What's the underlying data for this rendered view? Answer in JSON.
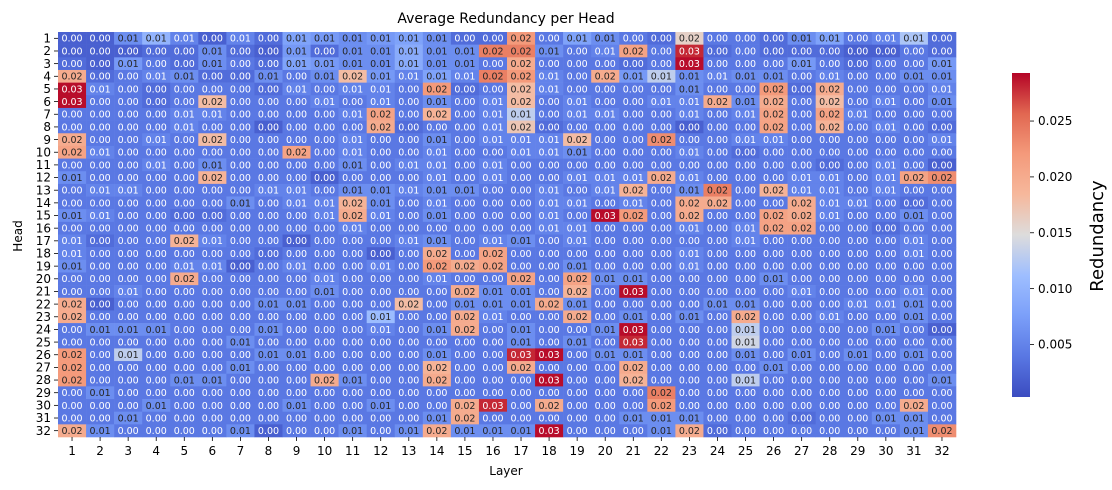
{
  "chart_data": {
    "type": "heatmap",
    "title": "Average Redundancy per Head",
    "xlabel": "Layer",
    "ylabel": "Head",
    "colorbar_label": "Redundancy",
    "colormap": "coolwarm",
    "vmin": 0.0003,
    "vmax": 0.0293,
    "x_categories": [
      "1",
      "2",
      "3",
      "4",
      "5",
      "6",
      "7",
      "8",
      "9",
      "10",
      "11",
      "12",
      "13",
      "14",
      "15",
      "16",
      "17",
      "18",
      "19",
      "20",
      "21",
      "22",
      "23",
      "24",
      "25",
      "26",
      "27",
      "28",
      "29",
      "30",
      "31",
      "32"
    ],
    "y_categories": [
      "1",
      "2",
      "3",
      "4",
      "5",
      "6",
      "7",
      "8",
      "9",
      "10",
      "11",
      "12",
      "13",
      "14",
      "15",
      "16",
      "17",
      "18",
      "19",
      "20",
      "21",
      "22",
      "23",
      "24",
      "25",
      "26",
      "27",
      "28",
      "29",
      "30",
      "31",
      "32"
    ],
    "colorbar_ticks": [
      0.005,
      0.01,
      0.015,
      0.02,
      0.025
    ],
    "colorbar_tick_labels": [
      "0.005",
      "0.010",
      "0.015",
      "0.020",
      "0.025"
    ],
    "values": [
      [
        0.002,
        0.002,
        0.006,
        0.01,
        0.005,
        0.002,
        0.005,
        0.003,
        0.008,
        0.007,
        0.006,
        0.007,
        0.008,
        0.006,
        0.003,
        0.003,
        0.022,
        0.004,
        0.008,
        0.006,
        0.004,
        0.003,
        0.016,
        0.004,
        0.004,
        0.003,
        0.006,
        0.008,
        0.004,
        0.005,
        0.012,
        0.003
      ],
      [
        0.002,
        0.002,
        0.002,
        0.003,
        0.003,
        0.006,
        0.003,
        0.002,
        0.007,
        0.003,
        0.006,
        0.006,
        0.009,
        0.006,
        0.006,
        0.024,
        0.024,
        0.006,
        0.004,
        0.005,
        0.021,
        0.004,
        0.028,
        0.003,
        0.004,
        0.003,
        0.003,
        0.003,
        0.002,
        0.002,
        0.004,
        0.003
      ],
      [
        0.003,
        0.002,
        0.007,
        0.004,
        0.003,
        0.006,
        0.004,
        0.003,
        0.008,
        0.007,
        0.006,
        0.006,
        0.009,
        0.006,
        0.006,
        0.004,
        0.02,
        0.004,
        0.004,
        0.004,
        0.003,
        0.004,
        0.029,
        0.004,
        0.004,
        0.004,
        0.007,
        0.004,
        0.003,
        0.004,
        0.004,
        0.007
      ],
      [
        0.02,
        0.003,
        0.004,
        0.005,
        0.006,
        0.003,
        0.003,
        0.006,
        0.004,
        0.006,
        0.018,
        0.007,
        0.005,
        0.008,
        0.005,
        0.024,
        0.022,
        0.005,
        0.004,
        0.02,
        0.007,
        0.013,
        0.006,
        0.005,
        0.006,
        0.006,
        0.004,
        0.005,
        0.004,
        0.004,
        0.006,
        0.006
      ],
      [
        0.029,
        0.005,
        0.004,
        0.003,
        0.004,
        0.004,
        0.004,
        0.003,
        0.005,
        0.004,
        0.005,
        0.005,
        0.004,
        0.022,
        0.003,
        0.004,
        0.018,
        0.005,
        0.004,
        0.004,
        0.004,
        0.004,
        0.006,
        0.004,
        0.004,
        0.022,
        0.003,
        0.02,
        0.004,
        0.004,
        0.004,
        0.005
      ],
      [
        0.029,
        0.004,
        0.004,
        0.003,
        0.004,
        0.018,
        0.004,
        0.004,
        0.004,
        0.005,
        0.004,
        0.005,
        0.004,
        0.006,
        0.004,
        0.005,
        0.018,
        0.004,
        0.005,
        0.004,
        0.004,
        0.005,
        0.005,
        0.02,
        0.006,
        0.02,
        0.004,
        0.018,
        0.004,
        0.005,
        0.004,
        0.006
      ],
      [
        0.004,
        0.004,
        0.004,
        0.004,
        0.005,
        0.005,
        0.004,
        0.004,
        0.004,
        0.004,
        0.005,
        0.021,
        0.004,
        0.019,
        0.004,
        0.005,
        0.013,
        0.004,
        0.005,
        0.005,
        0.004,
        0.004,
        0.005,
        0.004,
        0.005,
        0.021,
        0.004,
        0.021,
        0.005,
        0.004,
        0.004,
        0.004
      ],
      [
        0.004,
        0.004,
        0.004,
        0.004,
        0.005,
        0.004,
        0.004,
        0.002,
        0.004,
        0.004,
        0.004,
        0.02,
        0.003,
        0.004,
        0.004,
        0.005,
        0.017,
        0.003,
        0.004,
        0.004,
        0.004,
        0.004,
        0.002,
        0.004,
        0.004,
        0.021,
        0.004,
        0.019,
        0.004,
        0.005,
        0.004,
        0.003
      ],
      [
        0.02,
        0.004,
        0.004,
        0.005,
        0.004,
        0.018,
        0.004,
        0.004,
        0.004,
        0.004,
        0.005,
        0.004,
        0.004,
        0.006,
        0.004,
        0.005,
        0.005,
        0.005,
        0.018,
        0.004,
        0.004,
        0.023,
        0.004,
        0.004,
        0.005,
        0.005,
        0.004,
        0.004,
        0.004,
        0.004,
        0.004,
        0.005
      ],
      [
        0.021,
        0.005,
        0.004,
        0.004,
        0.004,
        0.004,
        0.004,
        0.004,
        0.021,
        0.004,
        0.005,
        0.004,
        0.004,
        0.005,
        0.004,
        0.004,
        0.005,
        0.005,
        0.006,
        0.004,
        0.004,
        0.004,
        0.005,
        0.004,
        0.003,
        0.004,
        0.004,
        0.004,
        0.004,
        0.004,
        0.004,
        0.004
      ],
      [
        0.004,
        0.004,
        0.004,
        0.005,
        0.004,
        0.006,
        0.004,
        0.004,
        0.004,
        0.004,
        0.006,
        0.004,
        0.005,
        0.005,
        0.004,
        0.005,
        0.004,
        0.004,
        0.004,
        0.004,
        0.004,
        0.004,
        0.004,
        0.004,
        0.004,
        0.004,
        0.004,
        0.003,
        0.004,
        0.005,
        0.004,
        0.002
      ],
      [
        0.006,
        0.004,
        0.004,
        0.004,
        0.004,
        0.019,
        0.004,
        0.004,
        0.004,
        0.002,
        0.004,
        0.004,
        0.004,
        0.005,
        0.004,
        0.005,
        0.004,
        0.004,
        0.005,
        0.005,
        0.005,
        0.02,
        0.005,
        0.004,
        0.004,
        0.004,
        0.005,
        0.005,
        0.004,
        0.005,
        0.021,
        0.023
      ],
      [
        0.004,
        0.005,
        0.005,
        0.004,
        0.004,
        0.004,
        0.004,
        0.005,
        0.005,
        0.004,
        0.006,
        0.006,
        0.005,
        0.006,
        0.006,
        0.004,
        0.004,
        0.005,
        0.004,
        0.005,
        0.019,
        0.004,
        0.006,
        0.024,
        0.004,
        0.019,
        0.005,
        0.005,
        0.004,
        0.005,
        0.004,
        0.004
      ],
      [
        0.004,
        0.004,
        0.004,
        0.004,
        0.004,
        0.004,
        0.006,
        0.004,
        0.005,
        0.005,
        0.019,
        0.006,
        0.004,
        0.005,
        0.004,
        0.004,
        0.004,
        0.005,
        0.005,
        0.004,
        0.005,
        0.004,
        0.02,
        0.02,
        0.004,
        0.004,
        0.02,
        0.005,
        0.005,
        0.004,
        0.003,
        0.004
      ],
      [
        0.006,
        0.005,
        0.004,
        0.004,
        0.003,
        0.003,
        0.004,
        0.004,
        0.004,
        0.005,
        0.02,
        0.005,
        0.004,
        0.006,
        0.004,
        0.004,
        0.004,
        0.005,
        0.004,
        0.029,
        0.022,
        0.004,
        0.02,
        0.004,
        0.004,
        0.021,
        0.02,
        0.005,
        0.004,
        0.004,
        0.006,
        0.004
      ],
      [
        0.004,
        0.004,
        0.004,
        0.004,
        0.004,
        0.004,
        0.004,
        0.004,
        0.004,
        0.004,
        0.005,
        0.004,
        0.004,
        0.004,
        0.004,
        0.004,
        0.004,
        0.005,
        0.005,
        0.004,
        0.004,
        0.004,
        0.005,
        0.004,
        0.005,
        0.021,
        0.021,
        0.004,
        0.004,
        0.003,
        0.004,
        0.004
      ],
      [
        0.005,
        0.003,
        0.004,
        0.004,
        0.019,
        0.005,
        0.004,
        0.004,
        0.002,
        0.004,
        0.004,
        0.004,
        0.005,
        0.006,
        0.004,
        0.005,
        0.006,
        0.004,
        0.005,
        0.004,
        0.004,
        0.004,
        0.004,
        0.004,
        0.005,
        0.004,
        0.004,
        0.004,
        0.004,
        0.004,
        0.005,
        0.004
      ],
      [
        0.005,
        0.004,
        0.004,
        0.004,
        0.004,
        0.004,
        0.004,
        0.003,
        0.004,
        0.004,
        0.004,
        0.002,
        0.004,
        0.02,
        0.004,
        0.021,
        0.004,
        0.004,
        0.004,
        0.004,
        0.004,
        0.004,
        0.005,
        0.004,
        0.004,
        0.004,
        0.004,
        0.004,
        0.004,
        0.004,
        0.005,
        0.004
      ],
      [
        0.006,
        0.004,
        0.004,
        0.004,
        0.005,
        0.005,
        0.002,
        0.004,
        0.005,
        0.004,
        0.004,
        0.005,
        0.004,
        0.022,
        0.02,
        0.021,
        0.004,
        0.004,
        0.006,
        0.004,
        0.004,
        0.004,
        0.005,
        0.004,
        0.004,
        0.004,
        0.004,
        0.004,
        0.004,
        0.004,
        0.004,
        0.004
      ],
      [
        0.004,
        0.004,
        0.004,
        0.004,
        0.02,
        0.004,
        0.004,
        0.004,
        0.004,
        0.005,
        0.004,
        0.004,
        0.004,
        0.005,
        0.004,
        0.004,
        0.021,
        0.004,
        0.021,
        0.006,
        0.006,
        0.004,
        0.004,
        0.004,
        0.004,
        0.006,
        0.004,
        0.004,
        0.004,
        0.004,
        0.004,
        0.004
      ],
      [
        0.004,
        0.004,
        0.005,
        0.004,
        0.004,
        0.004,
        0.004,
        0.004,
        0.004,
        0.006,
        0.004,
        0.004,
        0.004,
        0.004,
        0.02,
        0.006,
        0.006,
        0.004,
        0.019,
        0.004,
        0.029,
        0.004,
        0.004,
        0.004,
        0.004,
        0.004,
        0.005,
        0.004,
        0.004,
        0.004,
        0.005,
        0.004
      ],
      [
        0.02,
        0.002,
        0.004,
        0.004,
        0.004,
        0.004,
        0.004,
        0.006,
        0.006,
        0.004,
        0.004,
        0.004,
        0.018,
        0.004,
        0.006,
        0.006,
        0.006,
        0.02,
        0.006,
        0.004,
        0.004,
        0.004,
        0.004,
        0.006,
        0.006,
        0.004,
        0.004,
        0.004,
        0.005,
        0.005,
        0.006,
        0.004
      ],
      [
        0.02,
        0.004,
        0.004,
        0.004,
        0.004,
        0.004,
        0.004,
        0.004,
        0.004,
        0.004,
        0.004,
        0.011,
        0.004,
        0.004,
        0.02,
        0.005,
        0.004,
        0.004,
        0.02,
        0.004,
        0.006,
        0.004,
        0.006,
        0.004,
        0.02,
        0.004,
        0.004,
        0.005,
        0.004,
        0.004,
        0.006,
        0.004
      ],
      [
        0.004,
        0.006,
        0.006,
        0.006,
        0.004,
        0.004,
        0.004,
        0.006,
        0.004,
        0.004,
        0.004,
        0.005,
        0.004,
        0.006,
        0.02,
        0.004,
        0.006,
        0.004,
        0.004,
        0.006,
        0.029,
        0.004,
        0.004,
        0.004,
        0.013,
        0.004,
        0.004,
        0.004,
        0.004,
        0.006,
        0.004,
        0.002
      ],
      [
        0.004,
        0.004,
        0.004,
        0.004,
        0.004,
        0.004,
        0.006,
        0.004,
        0.004,
        0.004,
        0.004,
        0.004,
        0.004,
        0.004,
        0.004,
        0.004,
        0.006,
        0.004,
        0.006,
        0.004,
        0.028,
        0.004,
        0.004,
        0.004,
        0.014,
        0.004,
        0.004,
        0.004,
        0.004,
        0.004,
        0.004,
        0.004
      ],
      [
        0.022,
        0.004,
        0.013,
        0.004,
        0.004,
        0.004,
        0.004,
        0.006,
        0.006,
        0.004,
        0.004,
        0.004,
        0.004,
        0.006,
        0.004,
        0.004,
        0.028,
        0.029,
        0.004,
        0.006,
        0.006,
        0.004,
        0.004,
        0.004,
        0.006,
        0.004,
        0.006,
        0.004,
        0.006,
        0.004,
        0.006,
        0.004
      ],
      [
        0.022,
        0.004,
        0.004,
        0.004,
        0.004,
        0.004,
        0.006,
        0.004,
        0.004,
        0.004,
        0.004,
        0.004,
        0.004,
        0.019,
        0.004,
        0.004,
        0.02,
        0.004,
        0.004,
        0.004,
        0.02,
        0.004,
        0.004,
        0.004,
        0.004,
        0.006,
        0.004,
        0.004,
        0.004,
        0.004,
        0.004,
        0.004
      ],
      [
        0.022,
        0.004,
        0.004,
        0.004,
        0.006,
        0.006,
        0.004,
        0.004,
        0.004,
        0.02,
        0.006,
        0.004,
        0.004,
        0.02,
        0.004,
        0.004,
        0.004,
        0.029,
        0.004,
        0.004,
        0.019,
        0.004,
        0.004,
        0.004,
        0.013,
        0.004,
        0.004,
        0.004,
        0.004,
        0.004,
        0.004,
        0.006
      ],
      [
        0.004,
        0.006,
        0.004,
        0.004,
        0.004,
        0.004,
        0.004,
        0.004,
        0.004,
        0.004,
        0.004,
        0.004,
        0.004,
        0.004,
        0.004,
        0.004,
        0.004,
        0.004,
        0.004,
        0.004,
        0.004,
        0.024,
        0.004,
        0.004,
        0.004,
        0.004,
        0.004,
        0.004,
        0.004,
        0.004,
        0.004,
        0.004
      ],
      [
        0.004,
        0.004,
        0.004,
        0.006,
        0.004,
        0.004,
        0.004,
        0.004,
        0.006,
        0.004,
        0.004,
        0.006,
        0.004,
        0.004,
        0.02,
        0.028,
        0.004,
        0.02,
        0.004,
        0.004,
        0.004,
        0.022,
        0.004,
        0.004,
        0.004,
        0.004,
        0.004,
        0.004,
        0.004,
        0.004,
        0.02,
        0.004
      ],
      [
        0.004,
        0.004,
        0.006,
        0.004,
        0.004,
        0.004,
        0.004,
        0.004,
        0.004,
        0.004,
        0.004,
        0.004,
        0.004,
        0.006,
        0.02,
        0.004,
        0.004,
        0.004,
        0.004,
        0.004,
        0.006,
        0.006,
        0.006,
        0.004,
        0.004,
        0.004,
        0.003,
        0.004,
        0.004,
        0.006,
        0.006,
        0.004
      ],
      [
        0.02,
        0.006,
        0.004,
        0.004,
        0.004,
        0.004,
        0.006,
        0.002,
        0.004,
        0.004,
        0.006,
        0.004,
        0.006,
        0.02,
        0.006,
        0.006,
        0.006,
        0.029,
        0.004,
        0.004,
        0.004,
        0.006,
        0.02,
        0.003,
        0.004,
        0.004,
        0.004,
        0.004,
        0.004,
        0.004,
        0.006,
        0.023
      ]
    ]
  }
}
